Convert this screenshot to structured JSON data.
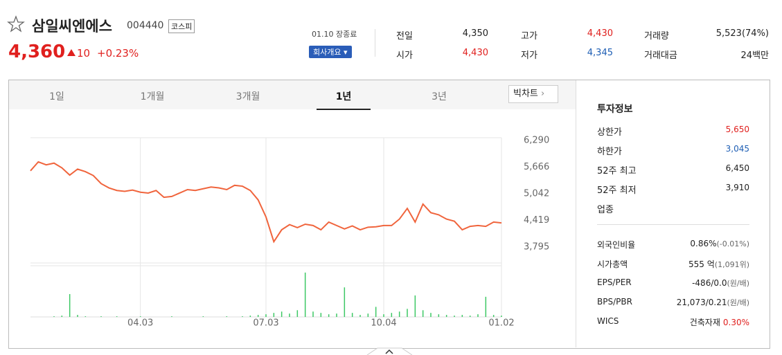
{
  "header": {
    "name": "삼일씨엔에스",
    "code": "004440",
    "market": "코스피",
    "price": "4,360",
    "change": "10",
    "change_rate": "+0.23%",
    "status": "01.10 장종료",
    "company_button": "회사개요"
  },
  "quote": {
    "rows": [
      [
        {
          "label": "전일",
          "value": "4,350"
        },
        {
          "label": "고가",
          "value": "4,430"
        },
        {
          "label": "거래량",
          "value": "5,523(74%)"
        }
      ],
      [
        {
          "label": "시가",
          "value": "4,430"
        },
        {
          "label": "저가",
          "value": "4,345"
        },
        {
          "label": "거래대금",
          "value": "24백만"
        }
      ]
    ]
  },
  "tabs": [
    "1일",
    "1개월",
    "3개월",
    "1년",
    "3년"
  ],
  "big_chart": "빅차트",
  "invest": {
    "title": "투자정보",
    "rows1": [
      {
        "label": "상한가",
        "value": "5,650"
      },
      {
        "label": "하한가",
        "value": "3,045"
      },
      {
        "label": "52주 최고",
        "value": "6,450"
      },
      {
        "label": "52주 최저",
        "value": "3,910"
      },
      {
        "label": "업종",
        "value": ""
      }
    ],
    "rows2": [
      {
        "label": "외국인비율",
        "value": "0.86%",
        "sub": "(-0.01%)"
      },
      {
        "label": "시가총액",
        "value": "555 억",
        "sub": "(1,091위)"
      },
      {
        "label": "EPS/PER",
        "value": "-486/0.0",
        "sub": "(원/배)"
      },
      {
        "label": "BPS/PBR",
        "value": "21,073/0.21",
        "sub": "(원/배)"
      },
      {
        "label": "WICS",
        "value": "건축자재",
        "sub": "0.30%"
      }
    ]
  },
  "chart_data": {
    "type": "line",
    "color": "#f0643c",
    "grid": true,
    "values": [
      5580,
      5790,
      5720,
      5760,
      5650,
      5480,
      5620,
      5560,
      5470,
      5280,
      5180,
      5120,
      5100,
      5130,
      5080,
      5060,
      5120,
      4960,
      4980,
      5060,
      5140,
      5120,
      5160,
      5200,
      5180,
      5140,
      5240,
      5220,
      5120,
      4900,
      4500,
      3920,
      4200,
      4320,
      4250,
      4330,
      4300,
      4200,
      4380,
      4300,
      4220,
      4290,
      4200,
      4260,
      4270,
      4300,
      4300,
      4450,
      4700,
      4380,
      4800,
      4600,
      4550,
      4450,
      4400,
      4200,
      4280,
      4300,
      4280,
      4380,
      4360
    ],
    "ylim": [
      3423,
      6355
    ],
    "yticks": [
      {
        "value": 6290,
        "label": "6,290"
      },
      {
        "value": 5666,
        "label": "5,666"
      },
      {
        "value": 5042,
        "label": "5,042"
      },
      {
        "value": 4419,
        "label": "4,419"
      },
      {
        "value": 3795,
        "label": "3,795"
      }
    ],
    "xlim": [
      0,
      60
    ],
    "xticks": [
      {
        "value": 14,
        "label": "04.03"
      },
      {
        "value": 30,
        "label": "07.03"
      },
      {
        "value": 45,
        "label": "10.04"
      },
      {
        "value": 60,
        "label": "01.02"
      }
    ],
    "volume": {
      "type": "bar",
      "color": "#3cc864",
      "ylim": [
        0,
        70
      ],
      "values": [
        0,
        0,
        0,
        1,
        2,
        34,
        3,
        1,
        0,
        1,
        0,
        1,
        0,
        0,
        1,
        0,
        0,
        0,
        1,
        0,
        0,
        0,
        1,
        0,
        0,
        1,
        0,
        1,
        2,
        3,
        4,
        6,
        8,
        5,
        10,
        66,
        8,
        6,
        4,
        5,
        44,
        6,
        3,
        5,
        15,
        4,
        6,
        8,
        12,
        32,
        10,
        6,
        4,
        3,
        2,
        3,
        2,
        4,
        30,
        3,
        2
      ]
    }
  }
}
